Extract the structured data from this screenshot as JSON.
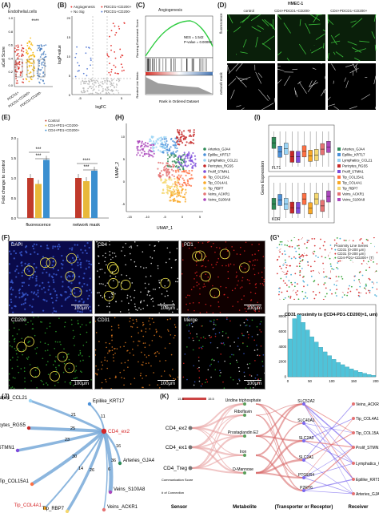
{
  "panels": {
    "A": {
      "label": "(A)",
      "title": "Endothelial.cells",
      "ylabel": "aCell Score",
      "sig": "****",
      "groups": [
        "PDCD1+",
        "PDCD1+CD200+",
        "PDCD1+CD200-"
      ],
      "yticks": [
        "1.0",
        "0.8",
        "0.6",
        "0.4",
        "0.2",
        "0.0"
      ],
      "colors": [
        "#d73027",
        "#f4b400",
        "#4a7fc1"
      ]
    },
    "B": {
      "label": "(B)",
      "legend": [
        "Angiogenesis",
        "No Sig",
        "PDCD1+CD200+",
        "PDCD1+CD200-"
      ],
      "xlabel": "logFC",
      "ylabel": "logP-value",
      "xticks": [
        "-5",
        "0",
        "5"
      ],
      "yticks": [
        "20",
        "15",
        "10",
        "5",
        "0"
      ]
    },
    "C": {
      "label": "(C)",
      "title": "Angiogenesis",
      "nes": "NES = 1.542",
      "pval": "P-value = 0.00094",
      "ylabel_top": "Running Enrichment Score",
      "ylabel_bottom": "Ranked List Metric",
      "xlabel": "Rank in Ordered Dataset"
    },
    "D": {
      "label": "(D)",
      "title": "HMEC-1",
      "cols": [
        "control",
        "CD4+PDCD1+CD200-",
        "CD4+PDCD1+CD200+"
      ],
      "rows": [
        "fluorescence",
        "network mask"
      ]
    },
    "E": {
      "label": "(E)",
      "ylabel": "Fold change to control",
      "legend": [
        "Control",
        "CD4+PD1+CD200-",
        "CD4+PD1+CD200+"
      ],
      "sig": [
        "***",
        "***",
        "****",
        "***"
      ],
      "yticks": [
        "2.0",
        "1.5",
        "1.0",
        "0.5",
        "0.0"
      ],
      "colors": [
        "#c0392b",
        "#e8b83a",
        "#3b8fd0"
      ]
    },
    "H": {
      "label": "(H)",
      "xlabel": "UMAP_1",
      "ylabel": "UMAP_2",
      "xticks": [
        "-15",
        "-10",
        "-5",
        "0",
        "5"
      ],
      "yticks": [
        "10",
        "5",
        "0",
        "-5"
      ],
      "legend": [
        "Arteries_GJA4",
        "Epilike_KRT17",
        "Lymphatics_CCL21",
        "Pericytes_RGS5",
        "Prolif_STMN1",
        "Tip_COL15A1",
        "Tip_COL4A1",
        "Tip_RBP7",
        "Veins_ACKR1",
        "Veins_S100A8"
      ],
      "colors": [
        "#2e8b57",
        "#4a90d9",
        "#9ad4f5",
        "#c62828",
        "#7d4cdb",
        "#ff7043",
        "#f9a825",
        "#f5d76e",
        "#e57373",
        "#ab47bc"
      ]
    },
    "I": {
      "label": "(I)",
      "ylabel": "Gene Expression",
      "genes": [
        "FLT1",
        "KDR"
      ],
      "legend": [
        "Arteries_GJA4",
        "Epilike_KRT17",
        "Lymphatics_CCL21",
        "Pericytes_RGS5",
        "Prolif_STMN1",
        "Tip_COL15A1",
        "Tip_COL4A1",
        "Tip_RBP7",
        "Veins_ACKR1",
        "Veins_S100A8"
      ]
    },
    "F": {
      "label": "(F)",
      "tiles": [
        "DAPI",
        "CD4",
        "PD1",
        "CD200",
        "CD31",
        "Merge"
      ],
      "scale": "100μm"
    },
    "G": {
      "label": "(G)",
      "legend": [
        "Proximity Line Series",
        "CD31 (0-200 μm)",
        "CD31 (0-200 μm)",
        "CD4-PD1+CD200+ (T)"
      ],
      "hist_title": "CD31 proximity to ([CD4-PD1-CD200]=1, um)",
      "xticks": [
        "0",
        "50",
        "100",
        "150",
        "200"
      ],
      "yticks": [
        "8000",
        "6000",
        "4000",
        "2000",
        "0"
      ]
    },
    "J": {
      "label": "(J)",
      "center": "CD4_ex2",
      "nodes": [
        "Lymphatics_CCL21",
        "Epilike_KRT17",
        "Pericytes_RGS5",
        "Prolif_STMN1",
        "Arteries_GJA4",
        "Tip_COL15A1",
        "Veins_S100A8",
        "Tip_COL4A1",
        "Tip_RBP7",
        "Veins_ACKR1"
      ],
      "weights": [
        "21",
        "11",
        "25",
        "23",
        "16",
        "30",
        "36",
        "14",
        "26",
        "6"
      ]
    },
    "K": {
      "label": "(K)",
      "sensors": [
        "CD4_ex2",
        "CD4_ex1",
        "CD4_Treg"
      ],
      "metabolites": [
        "Uridine triphosphate",
        "Riboflavin",
        "Prostaglandin E2",
        "Iron",
        "D-Mannose"
      ],
      "transporters": [
        "SLC52A2",
        "SLC40A1",
        "SLC2A3",
        "SLC2A1",
        "PTGER4",
        "P2RY6"
      ],
      "receivers": [
        "Veins_ACKR1",
        "Tip_COL4A1",
        "Tip_COL15A1",
        "Prolif_STMN1",
        "Lymphatics_CCL21",
        "Epilike_KRT17",
        "Arteries_GJA4"
      ],
      "footer": [
        "Sensor",
        "Metabolite",
        "(Transporter or Receptor)",
        "Receiver"
      ],
      "legend_score": "Communication Score",
      "legend_conn": "# of Connection",
      "scale_vals": [
        "15.4",
        "15.5"
      ]
    }
  },
  "chart_data": [
    {
      "type": "bar",
      "categories": [
        "fluorescence",
        "network mask"
      ],
      "series": [
        {
          "name": "Control",
          "values": [
            1.0,
            1.0
          ]
        },
        {
          "name": "CD4+PD1+CD200-",
          "values": [
            0.85,
            0.92
          ]
        },
        {
          "name": "CD4+PD1+CD200+",
          "values": [
            1.45,
            1.18
          ]
        }
      ],
      "ylabel": "Fold change to control",
      "ylim": [
        0,
        2.0
      ]
    },
    {
      "type": "bar",
      "title": "CD31 proximity to ([CD4-PD1-CD200]=1, um)",
      "x": [
        5,
        15,
        25,
        35,
        45,
        55,
        65,
        75,
        85,
        95,
        105,
        115,
        125,
        135,
        145,
        155,
        165,
        175,
        185,
        195
      ],
      "values": [
        5000,
        7700,
        8200,
        7200,
        6200,
        5300,
        4600,
        3900,
        3300,
        2800,
        2300,
        1900,
        1600,
        1300,
        1050,
        820,
        620,
        450,
        300,
        180
      ],
      "xlim": [
        0,
        200
      ],
      "ylim": [
        0,
        8500
      ]
    }
  ]
}
